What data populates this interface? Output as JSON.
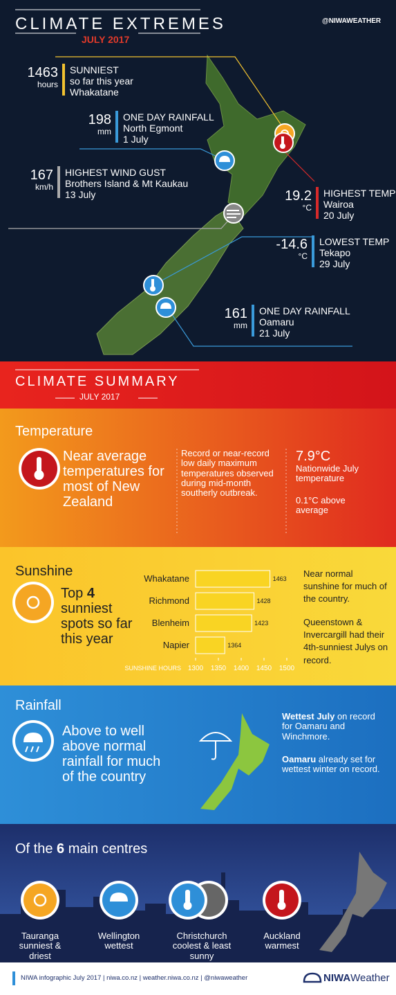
{
  "header": {
    "title": "CLIMATE EXTREMES",
    "subtitle": "JULY 2017",
    "handle": "@NIWAWEATHER"
  },
  "extremes": [
    {
      "value": 1463,
      "unit": "hours",
      "lines": [
        "SUNNIEST",
        "so far this year",
        "Whakatane"
      ]
    },
    {
      "value": 198,
      "unit": "mm",
      "lines": [
        "ONE DAY RAINFALL",
        "North Egmont",
        "1 July"
      ]
    },
    {
      "value": 167,
      "unit": "km/h",
      "lines": [
        "HIGHEST WIND GUST",
        "Brothers Island & Mt Kaukau",
        "13 July"
      ]
    },
    {
      "value": 19.2,
      "unit": "°C",
      "lines": [
        "HIGHEST TEMP",
        "Wairoa",
        "20 July"
      ]
    },
    {
      "value": -14.6,
      "unit": "°C",
      "lines": [
        "LOWEST TEMP",
        "Tekapo",
        "29 July"
      ]
    },
    {
      "value": 161,
      "unit": "mm",
      "lines": [
        "ONE DAY RAINFALL",
        "Oamaru",
        "21 July"
      ]
    }
  ],
  "summary": {
    "title": "CLIMATE SUMMARY",
    "subtitle": "JULY 2017"
  },
  "temperature": {
    "heading": "Temperature",
    "main": "Near average temperatures for most of New Zealand",
    "note": "Record or near-record low daily maximum temperatures observed during mid-month southerly outbreak.",
    "stat": "7.9°C",
    "stat_label": "Nationwide July temperature",
    "anomaly": "0.1°C above average"
  },
  "sunshine": {
    "heading": "Sunshine",
    "main_pre": "Top",
    "main_bold": "4",
    "main_post": "sunniest spots so far this year",
    "notes": [
      "Near normal sunshine for much of the country.",
      "Queenstown & Invercargill had their 4th-sunniest Julys on record."
    ]
  },
  "chart_data": {
    "type": "bar",
    "orientation": "horizontal",
    "categories": [
      "Whakatane",
      "Richmond",
      "Blenheim",
      "Napier"
    ],
    "values": [
      1463,
      1428,
      1423,
      1364
    ],
    "color": "#f9d423",
    "xlim": [
      1300,
      1500
    ],
    "xticks": [
      1300,
      1350,
      1400,
      1450,
      1500
    ],
    "x_label": "SUNSHINE HOURS"
  },
  "rainfall": {
    "heading": "Rainfall",
    "main": "Above to well above normal rainfall for much of the country",
    "notes": [
      {
        "bold": "Wettest July",
        "text": " on record for Oamaru and Winchmore."
      },
      {
        "bold": "Oamaru",
        "text": " already set for wettest winter on record."
      }
    ]
  },
  "centres": {
    "heading_pre": "Of the",
    "heading_bold": "6",
    "heading_post": "main centres",
    "items": [
      "Tauranga sunniest & driest",
      "Wellington wettest",
      "Christchurch coolest & least sunny",
      "Auckland warmest"
    ]
  },
  "footer": {
    "text": "NIWA infographic July 2017 | niwa.co.nz | weather.niwa.co.nz | @niwaweather",
    "logo_bold": "NIWA",
    "logo_rest": "Weather"
  }
}
